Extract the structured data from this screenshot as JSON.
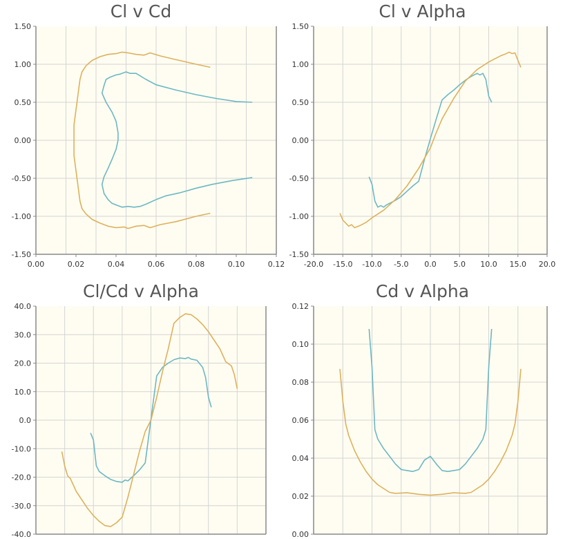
{
  "colors": {
    "series_a": "#6bb7c4",
    "series_b": "#deb05c",
    "plot_bg": "#fffdf1",
    "grid": "#d4d4d4",
    "axis": "#888888"
  },
  "chart_data": [
    {
      "type": "line",
      "title": "Cl v Cd",
      "xlabel": "",
      "ylabel": "",
      "xlim": [
        0,
        0.12
      ],
      "ylim": [
        -1.5,
        1.5
      ],
      "xticks": [
        "0.00",
        "0.02",
        "0.04",
        "0.06",
        "0.08",
        "0.10",
        "0.12"
      ],
      "yticks": [
        "-1.50",
        "-1.00",
        "-0.50",
        "0.00",
        "0.50",
        "1.00",
        "1.50"
      ],
      "grid": true,
      "series": [
        {
          "color": "series_a",
          "points": [
            [
              0.108,
              0.5
            ],
            [
              0.1,
              0.51
            ],
            [
              0.09,
              0.55
            ],
            [
              0.08,
              0.6
            ],
            [
              0.07,
              0.66
            ],
            [
              0.06,
              0.73
            ],
            [
              0.055,
              0.8
            ],
            [
              0.05,
              0.88
            ],
            [
              0.047,
              0.88
            ],
            [
              0.045,
              0.9
            ],
            [
              0.042,
              0.87
            ],
            [
              0.04,
              0.86
            ],
            [
              0.037,
              0.83
            ],
            [
              0.035,
              0.8
            ],
            [
              0.034,
              0.72
            ],
            [
              0.033,
              0.62
            ],
            [
              0.035,
              0.5
            ],
            [
              0.038,
              0.37
            ],
            [
              0.04,
              0.25
            ],
            [
              0.041,
              0.1
            ],
            [
              0.041,
              0.0
            ],
            [
              0.04,
              -0.12
            ],
            [
              0.038,
              -0.25
            ],
            [
              0.036,
              -0.37
            ],
            [
              0.034,
              -0.48
            ],
            [
              0.033,
              -0.58
            ],
            [
              0.034,
              -0.7
            ],
            [
              0.036,
              -0.78
            ],
            [
              0.038,
              -0.83
            ],
            [
              0.041,
              -0.86
            ],
            [
              0.043,
              -0.88
            ],
            [
              0.046,
              -0.87
            ],
            [
              0.049,
              -0.88
            ],
            [
              0.052,
              -0.87
            ],
            [
              0.055,
              -0.84
            ],
            [
              0.06,
              -0.78
            ],
            [
              0.065,
              -0.73
            ],
            [
              0.072,
              -0.69
            ],
            [
              0.08,
              -0.63
            ],
            [
              0.088,
              -0.58
            ],
            [
              0.098,
              -0.53
            ],
            [
              0.108,
              -0.49
            ]
          ]
        },
        {
          "color": "series_b",
          "points": [
            [
              0.087,
              0.96
            ],
            [
              0.08,
              1.0
            ],
            [
              0.07,
              1.06
            ],
            [
              0.062,
              1.11
            ],
            [
              0.057,
              1.15
            ],
            [
              0.054,
              1.12
            ],
            [
              0.05,
              1.13
            ],
            [
              0.046,
              1.15
            ],
            [
              0.043,
              1.16
            ],
            [
              0.04,
              1.14
            ],
            [
              0.036,
              1.13
            ],
            [
              0.032,
              1.1
            ],
            [
              0.028,
              1.05
            ],
            [
              0.025,
              0.98
            ],
            [
              0.023,
              0.9
            ],
            [
              0.022,
              0.8
            ],
            [
              0.021,
              0.6
            ],
            [
              0.02,
              0.4
            ],
            [
              0.019,
              0.2
            ],
            [
              0.019,
              0.0
            ],
            [
              0.019,
              -0.2
            ],
            [
              0.02,
              -0.4
            ],
            [
              0.021,
              -0.6
            ],
            [
              0.022,
              -0.8
            ],
            [
              0.023,
              -0.9
            ],
            [
              0.025,
              -0.97
            ],
            [
              0.028,
              -1.04
            ],
            [
              0.032,
              -1.09
            ],
            [
              0.036,
              -1.13
            ],
            [
              0.04,
              -1.15
            ],
            [
              0.044,
              -1.14
            ],
            [
              0.046,
              -1.16
            ],
            [
              0.05,
              -1.13
            ],
            [
              0.054,
              -1.12
            ],
            [
              0.057,
              -1.15
            ],
            [
              0.062,
              -1.11
            ],
            [
              0.07,
              -1.07
            ],
            [
              0.08,
              -1.0
            ],
            [
              0.087,
              -0.96
            ]
          ]
        }
      ]
    },
    {
      "type": "line",
      "title": "Cl v Alpha",
      "xlabel": "",
      "ylabel": "",
      "xlim": [
        -20,
        20
      ],
      "ylim": [
        -1.5,
        1.5
      ],
      "xticks": [
        "-20.0",
        "-15.0",
        "-10.0",
        "-5.0",
        "0.0",
        "5.0",
        "10.0",
        "15.0",
        "20.0"
      ],
      "yticks": [
        "-1.50",
        "-1.00",
        "-0.50",
        "0.00",
        "0.50",
        "1.00",
        "1.50"
      ],
      "grid": true,
      "series": [
        {
          "color": "series_a",
          "points": [
            [
              -10.5,
              -0.48
            ],
            [
              -10.0,
              -0.58
            ],
            [
              -9.5,
              -0.8
            ],
            [
              -9.0,
              -0.88
            ],
            [
              -8.5,
              -0.86
            ],
            [
              -8.0,
              -0.88
            ],
            [
              -7.5,
              -0.85
            ],
            [
              -7.0,
              -0.83
            ],
            [
              -6.0,
              -0.79
            ],
            [
              -5.0,
              -0.74
            ],
            [
              -4.0,
              -0.67
            ],
            [
              -3.0,
              -0.6
            ],
            [
              -2.0,
              -0.54
            ],
            [
              -1.0,
              -0.25
            ],
            [
              0.0,
              0.02
            ],
            [
              1.0,
              0.28
            ],
            [
              2.0,
              0.53
            ],
            [
              3.0,
              0.6
            ],
            [
              4.0,
              0.66
            ],
            [
              5.0,
              0.73
            ],
            [
              6.0,
              0.79
            ],
            [
              7.0,
              0.84
            ],
            [
              8.0,
              0.88
            ],
            [
              8.5,
              0.86
            ],
            [
              9.0,
              0.88
            ],
            [
              9.5,
              0.8
            ],
            [
              10.0,
              0.58
            ],
            [
              10.5,
              0.5
            ]
          ]
        },
        {
          "color": "series_b",
          "points": [
            [
              -15.5,
              -0.96
            ],
            [
              -15.0,
              -1.05
            ],
            [
              -14.0,
              -1.13
            ],
            [
              -13.5,
              -1.11
            ],
            [
              -13.0,
              -1.15
            ],
            [
              -12.0,
              -1.12
            ],
            [
              -11.0,
              -1.08
            ],
            [
              -10.0,
              -1.02
            ],
            [
              -8.0,
              -0.92
            ],
            [
              -6.0,
              -0.78
            ],
            [
              -4.0,
              -0.6
            ],
            [
              -2.0,
              -0.37
            ],
            [
              0.0,
              -0.1
            ],
            [
              1.0,
              0.1
            ],
            [
              2.0,
              0.28
            ],
            [
              4.0,
              0.55
            ],
            [
              6.0,
              0.78
            ],
            [
              8.0,
              0.93
            ],
            [
              10.0,
              1.03
            ],
            [
              12.0,
              1.11
            ],
            [
              13.0,
              1.14
            ],
            [
              13.5,
              1.16
            ],
            [
              14.0,
              1.14
            ],
            [
              14.5,
              1.15
            ],
            [
              15.0,
              1.05
            ],
            [
              15.5,
              0.96
            ]
          ]
        }
      ]
    },
    {
      "type": "line",
      "title": "Cl/Cd v Alpha",
      "xlabel": "",
      "ylabel": "",
      "xlim": [
        -20,
        20
      ],
      "ylim": [
        -40,
        40
      ],
      "xticks": [],
      "yticks": [
        "-40.0",
        "-30.0",
        "-20.0",
        "-10.0",
        "0.0",
        "10.0",
        "20.0",
        "30.0",
        "40.0"
      ],
      "grid": true,
      "series": [
        {
          "color": "series_a",
          "points": [
            [
              -10.5,
              -4.5
            ],
            [
              -10.0,
              -7.0
            ],
            [
              -9.5,
              -16.0
            ],
            [
              -9.0,
              -18.0
            ],
            [
              -8.0,
              -19.5
            ],
            [
              -7.0,
              -20.8
            ],
            [
              -6.0,
              -21.5
            ],
            [
              -5.0,
              -21.8
            ],
            [
              -4.5,
              -21.0
            ],
            [
              -4.0,
              -21.3
            ],
            [
              -3.0,
              -19.5
            ],
            [
              -2.0,
              -17.5
            ],
            [
              -1.0,
              -15.0
            ],
            [
              0.0,
              0.3
            ],
            [
              1.0,
              15.5
            ],
            [
              2.0,
              18.5
            ],
            [
              3.0,
              20.0
            ],
            [
              4.0,
              21.2
            ],
            [
              5.0,
              21.8
            ],
            [
              6.0,
              21.6
            ],
            [
              6.5,
              22.0
            ],
            [
              7.0,
              21.4
            ],
            [
              8.0,
              21.0
            ],
            [
              9.0,
              18.5
            ],
            [
              9.5,
              15.0
            ],
            [
              10.0,
              8.0
            ],
            [
              10.5,
              4.5
            ]
          ]
        },
        {
          "color": "series_b",
          "points": [
            [
              -15.5,
              -11.0
            ],
            [
              -15.0,
              -16.0
            ],
            [
              -14.5,
              -19.5
            ],
            [
              -14.0,
              -20.5
            ],
            [
              -13.0,
              -25.0
            ],
            [
              -12.0,
              -28.0
            ],
            [
              -11.0,
              -31.0
            ],
            [
              -10.0,
              -33.5
            ],
            [
              -9.0,
              -35.5
            ],
            [
              -8.0,
              -37.0
            ],
            [
              -7.0,
              -37.3
            ],
            [
              -6.0,
              -36.0
            ],
            [
              -5.0,
              -34.0
            ],
            [
              -4.0,
              -27.0
            ],
            [
              -3.0,
              -19.0
            ],
            [
              -2.0,
              -11.0
            ],
            [
              -1.0,
              -4.0
            ],
            [
              0.0,
              0.0
            ],
            [
              1.0,
              8.0
            ],
            [
              2.0,
              17.0
            ],
            [
              3.0,
              25.0
            ],
            [
              4.0,
              34.0
            ],
            [
              5.0,
              36.0
            ],
            [
              6.0,
              37.3
            ],
            [
              7.0,
              37.0
            ],
            [
              8.0,
              35.5
            ],
            [
              9.0,
              33.5
            ],
            [
              10.0,
              31.0
            ],
            [
              11.0,
              28.0
            ],
            [
              12.0,
              25.0
            ],
            [
              13.0,
              20.5
            ],
            [
              14.0,
              19.0
            ],
            [
              14.5,
              16.0
            ],
            [
              15.0,
              11.0
            ]
          ]
        }
      ]
    },
    {
      "type": "line",
      "title": "Cd v Alpha",
      "xlabel": "",
      "ylabel": "",
      "xlim": [
        -20,
        20
      ],
      "ylim": [
        0,
        0.12
      ],
      "xticks": [],
      "yticks": [
        "0.00",
        "0.02",
        "0.04",
        "0.06",
        "0.08",
        "0.10",
        "0.12"
      ],
      "grid": true,
      "series": [
        {
          "color": "series_a",
          "points": [
            [
              -10.5,
              0.108
            ],
            [
              -10.0,
              0.088
            ],
            [
              -9.5,
              0.055
            ],
            [
              -9.0,
              0.05
            ],
            [
              -8.0,
              0.045
            ],
            [
              -7.0,
              0.041
            ],
            [
              -6.0,
              0.037
            ],
            [
              -5.0,
              0.034
            ],
            [
              -4.0,
              0.0335
            ],
            [
              -3.0,
              0.033
            ],
            [
              -2.0,
              0.034
            ],
            [
              -1.0,
              0.039
            ],
            [
              0.0,
              0.041
            ],
            [
              1.0,
              0.037
            ],
            [
              2.0,
              0.0335
            ],
            [
              3.0,
              0.033
            ],
            [
              4.0,
              0.0335
            ],
            [
              5.0,
              0.034
            ],
            [
              6.0,
              0.037
            ],
            [
              7.0,
              0.041
            ],
            [
              8.0,
              0.045
            ],
            [
              9.0,
              0.05
            ],
            [
              9.5,
              0.055
            ],
            [
              10.0,
              0.088
            ],
            [
              10.5,
              0.108
            ]
          ]
        },
        {
          "color": "series_b",
          "points": [
            [
              -15.5,
              0.087
            ],
            [
              -15.0,
              0.07
            ],
            [
              -14.5,
              0.058
            ],
            [
              -14.0,
              0.052
            ],
            [
              -13.0,
              0.044
            ],
            [
              -12.0,
              0.038
            ],
            [
              -11.0,
              0.033
            ],
            [
              -10.0,
              0.029
            ],
            [
              -9.0,
              0.026
            ],
            [
              -8.0,
              0.024
            ],
            [
              -7.0,
              0.022
            ],
            [
              -6.0,
              0.0215
            ],
            [
              -4.0,
              0.0218
            ],
            [
              -2.0,
              0.021
            ],
            [
              0.0,
              0.0205
            ],
            [
              2.0,
              0.021
            ],
            [
              4.0,
              0.0218
            ],
            [
              6.0,
              0.0215
            ],
            [
              7.0,
              0.022
            ],
            [
              8.0,
              0.024
            ],
            [
              9.0,
              0.026
            ],
            [
              10.0,
              0.029
            ],
            [
              11.0,
              0.033
            ],
            [
              12.0,
              0.038
            ],
            [
              13.0,
              0.044
            ],
            [
              14.0,
              0.052
            ],
            [
              14.5,
              0.058
            ],
            [
              15.0,
              0.07
            ],
            [
              15.5,
              0.087
            ]
          ]
        }
      ]
    }
  ]
}
